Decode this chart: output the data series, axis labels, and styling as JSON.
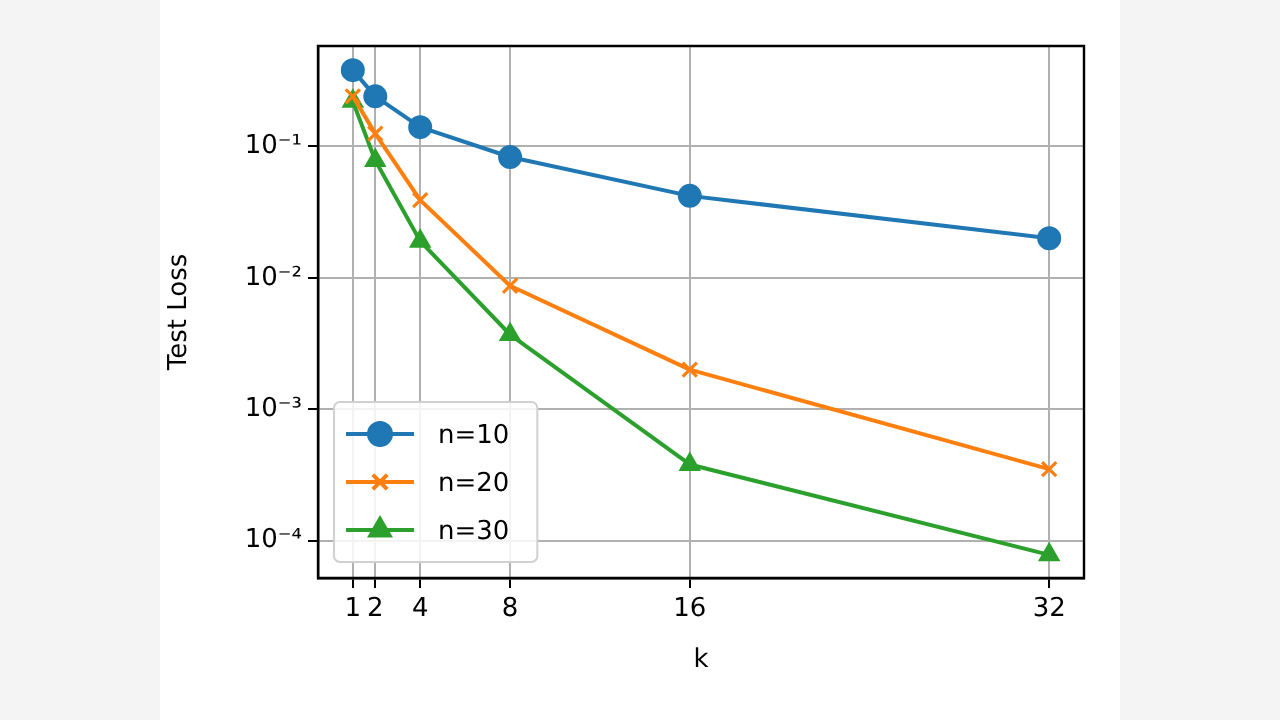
{
  "chart_data": {
    "type": "line",
    "xlabel": "k",
    "ylabel": "Test Loss",
    "x": [
      1,
      2,
      4,
      8,
      16,
      32
    ],
    "series": [
      {
        "name": "n=10",
        "color": "#1f77b4",
        "marker": "circle",
        "values": [
          0.38,
          0.24,
          0.14,
          0.083,
          0.042,
          0.02
        ]
      },
      {
        "name": "n=20",
        "color": "#ff7f0e",
        "marker": "cross",
        "values": [
          0.24,
          0.125,
          0.039,
          0.0087,
          0.002,
          0.00035
        ]
      },
      {
        "name": "n=30",
        "color": "#2ca02c",
        "marker": "triangle",
        "values": [
          0.22,
          0.078,
          0.019,
          0.0037,
          0.00038,
          7.8e-05
        ]
      }
    ],
    "log": "y",
    "xlim": [
      -0.55,
      33.55
    ],
    "ylim": [
      5.2e-05,
      0.58
    ],
    "xticks": [
      1,
      2,
      4,
      8,
      16,
      32
    ],
    "yticks": [
      {
        "value": 0.1,
        "label": "10⁻¹"
      },
      {
        "value": 0.01,
        "label": "10⁻²"
      },
      {
        "value": 0.001,
        "label": "10⁻³"
      },
      {
        "value": 0.0001,
        "label": "10⁻⁴"
      }
    ],
    "grid": true,
    "legend": "bottom left"
  }
}
